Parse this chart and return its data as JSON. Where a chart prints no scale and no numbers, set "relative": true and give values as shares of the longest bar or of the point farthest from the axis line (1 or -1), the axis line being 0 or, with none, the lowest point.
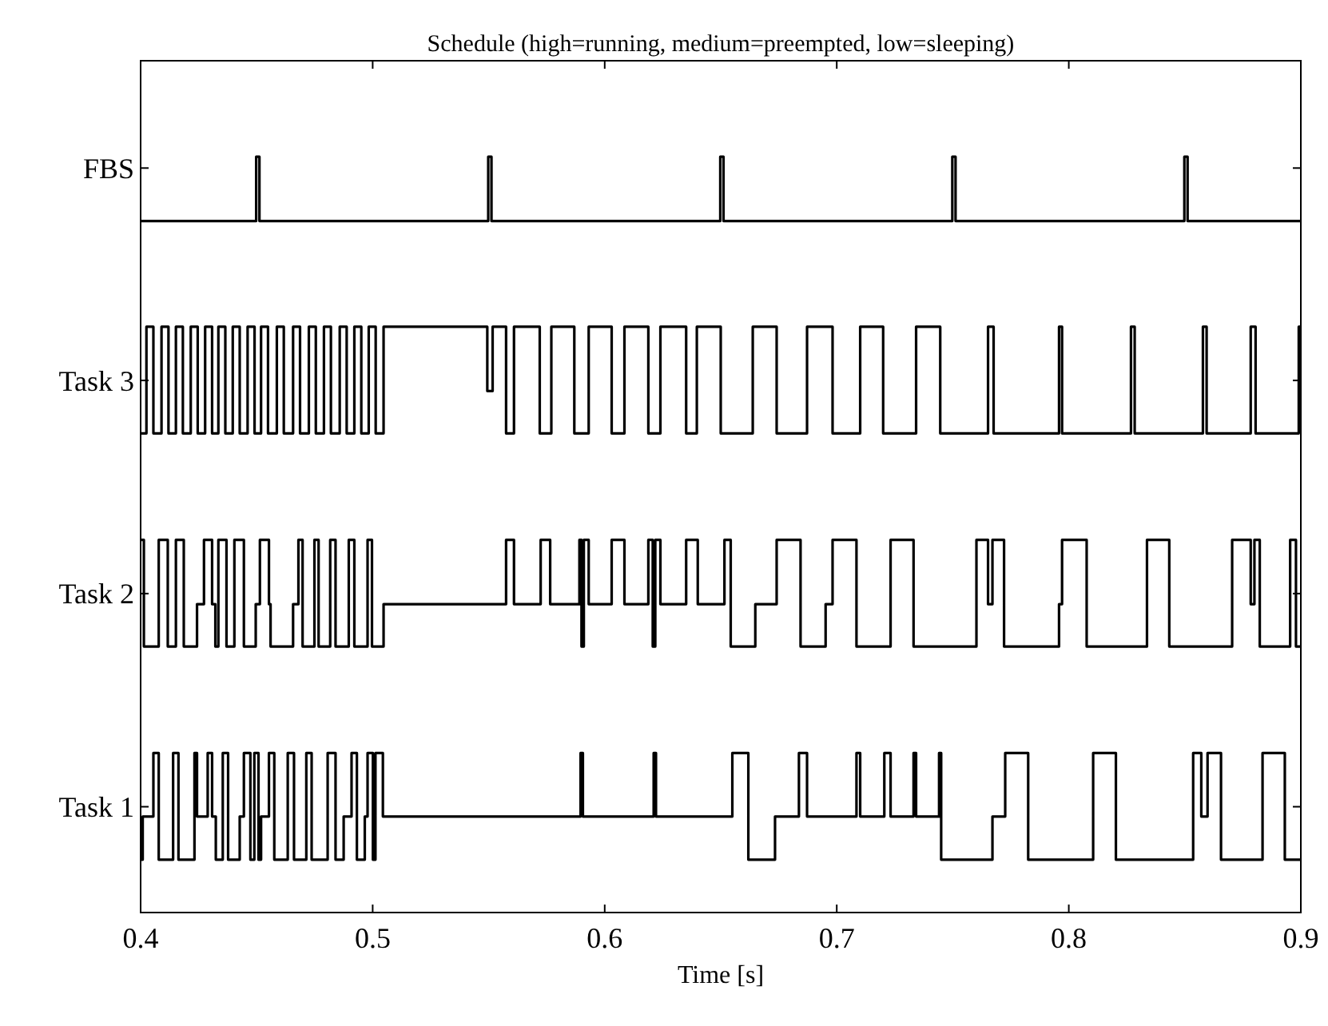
{
  "chart_data": {
    "type": "step",
    "title": "Schedule (high=running, medium=preempted, low=sleeping)",
    "xlabel": "Time [s]",
    "xlim": [
      0.4,
      0.9
    ],
    "xticks": [
      0.4,
      0.5,
      0.6,
      0.7,
      0.8,
      0.9
    ],
    "relative": true,
    "legend": "left",
    "series": [
      {
        "name": "FBS",
        "color": "#000000",
        "x": [
          0.4,
          0.4498,
          0.4512,
          0.5498,
          0.5512,
          0.6498,
          0.6512,
          0.7498,
          0.7512,
          0.8498,
          0.8512,
          0.9
        ],
        "values": [
          0.915,
          1,
          0.915,
          1,
          0.915,
          1,
          0.915,
          1,
          0.915,
          1,
          0.915,
          0.915
        ]
      },
      {
        "name": "Task 3",
        "color": "#000000",
        "x": [
          0.4,
          0.4025,
          0.4055,
          0.409,
          0.412,
          0.4152,
          0.4182,
          0.4216,
          0.4246,
          0.4278,
          0.4308,
          0.4335,
          0.4365,
          0.4397,
          0.4427,
          0.4461,
          0.4491,
          0.4519,
          0.4549,
          0.4587,
          0.4617,
          0.4657,
          0.4687,
          0.4725,
          0.4755,
          0.479,
          0.482,
          0.4858,
          0.4888,
          0.4921,
          0.4951,
          0.4983,
          0.5013,
          0.5047,
          0.5494,
          0.5517,
          0.5575,
          0.5609,
          0.572,
          0.577,
          0.5869,
          0.5931,
          0.603,
          0.6085,
          0.6188,
          0.624,
          0.6351,
          0.6397,
          0.65,
          0.6638,
          0.6741,
          0.6872,
          0.6982,
          0.7101,
          0.72,
          0.7342,
          0.7446,
          0.7652,
          0.7676,
          0.7958,
          0.7971,
          0.8268,
          0.8284,
          0.8578,
          0.8594,
          0.8784,
          0.8805,
          0.8991,
          0.9
        ],
        "values": [
          0.634,
          0.775,
          0.634,
          0.775,
          0.634,
          0.775,
          0.634,
          0.775,
          0.634,
          0.775,
          0.634,
          0.775,
          0.634,
          0.775,
          0.634,
          0.775,
          0.634,
          0.775,
          0.634,
          0.775,
          0.634,
          0.775,
          0.634,
          0.775,
          0.634,
          0.775,
          0.634,
          0.775,
          0.634,
          0.775,
          0.634,
          0.775,
          0.634,
          0.775,
          0.69,
          0.775,
          0.634,
          0.775,
          0.634,
          0.775,
          0.634,
          0.775,
          0.634,
          0.775,
          0.634,
          0.775,
          0.634,
          0.775,
          0.634,
          0.775,
          0.634,
          0.775,
          0.634,
          0.775,
          0.634,
          0.775,
          0.634,
          0.775,
          0.634,
          0.775,
          0.634,
          0.775,
          0.634,
          0.775,
          0.634,
          0.775,
          0.634,
          0.775,
          0.775
        ]
      },
      {
        "name": "Task 2",
        "color": "#000000",
        "x": [
          0.4,
          0.4014,
          0.4078,
          0.4117,
          0.4152,
          0.4186,
          0.4243,
          0.4273,
          0.4308,
          0.4322,
          0.4335,
          0.437,
          0.4404,
          0.4445,
          0.4496,
          0.4514,
          0.4553,
          0.456,
          0.4657,
          0.468,
          0.4698,
          0.4749,
          0.4767,
          0.4817,
          0.484,
          0.4897,
          0.4921,
          0.4978,
          0.4997,
          0.5047,
          0.5575,
          0.5609,
          0.5724,
          0.5765,
          0.5891,
          0.59,
          0.591,
          0.5931,
          0.603,
          0.6085,
          0.6188,
          0.6207,
          0.6218,
          0.624,
          0.6351,
          0.6401,
          0.6516,
          0.6543,
          0.6649,
          0.6741,
          0.6844,
          0.6952,
          0.6982,
          0.7085,
          0.7232,
          0.7331,
          0.7602,
          0.7652,
          0.7671,
          0.7721,
          0.7958,
          0.7971,
          0.8077,
          0.8337,
          0.8433,
          0.8704,
          0.8784,
          0.88,
          0.8823,
          0.8954,
          0.8979,
          0.9
        ],
        "values": [
          0.493,
          0.352,
          0.493,
          0.352,
          0.493,
          0.352,
          0.408,
          0.493,
          0.408,
          0.352,
          0.493,
          0.352,
          0.493,
          0.352,
          0.408,
          0.493,
          0.408,
          0.352,
          0.408,
          0.493,
          0.352,
          0.493,
          0.352,
          0.493,
          0.352,
          0.493,
          0.352,
          0.493,
          0.352,
          0.408,
          0.493,
          0.408,
          0.493,
          0.408,
          0.493,
          0.352,
          0.493,
          0.408,
          0.493,
          0.408,
          0.493,
          0.352,
          0.493,
          0.408,
          0.493,
          0.408,
          0.493,
          0.352,
          0.408,
          0.493,
          0.352,
          0.408,
          0.493,
          0.352,
          0.493,
          0.352,
          0.493,
          0.408,
          0.493,
          0.352,
          0.408,
          0.493,
          0.352,
          0.493,
          0.352,
          0.493,
          0.408,
          0.493,
          0.352,
          0.493,
          0.352,
          0.352
        ]
      },
      {
        "name": "Task 1",
        "color": "#000000",
        "x": [
          0.4,
          0.4009,
          0.4055,
          0.4078,
          0.414,
          0.4163,
          0.4232,
          0.4243,
          0.4289,
          0.4308,
          0.4324,
          0.4354,
          0.4377,
          0.4427,
          0.4445,
          0.4473,
          0.449,
          0.4508,
          0.4519,
          0.4553,
          0.4576,
          0.4634,
          0.4661,
          0.4714,
          0.4737,
          0.4806,
          0.484,
          0.4875,
          0.4909,
          0.4932,
          0.4966,
          0.4978,
          0.5001,
          0.5012,
          0.5044,
          0.5896,
          0.5906,
          0.6211,
          0.6221,
          0.655,
          0.6619,
          0.6734,
          0.6837,
          0.6872,
          0.7085,
          0.7101,
          0.7205,
          0.7232,
          0.7331,
          0.7342,
          0.7441,
          0.745,
          0.7671,
          0.7726,
          0.7825,
          0.8105,
          0.8203,
          0.8536,
          0.8571,
          0.8598,
          0.8656,
          0.8835,
          0.8931,
          0.9
        ],
        "values": [
          0.07,
          0.127,
          0.211,
          0.07,
          0.211,
          0.07,
          0.211,
          0.127,
          0.211,
          0.127,
          0.07,
          0.211,
          0.07,
          0.127,
          0.211,
          0.07,
          0.211,
          0.07,
          0.127,
          0.211,
          0.07,
          0.211,
          0.07,
          0.211,
          0.07,
          0.211,
          0.07,
          0.127,
          0.211,
          0.07,
          0.127,
          0.211,
          0.07,
          0.211,
          0.127,
          0.211,
          0.127,
          0.211,
          0.127,
          0.211,
          0.07,
          0.127,
          0.211,
          0.127,
          0.211,
          0.127,
          0.211,
          0.127,
          0.211,
          0.127,
          0.211,
          0.07,
          0.127,
          0.211,
          0.07,
          0.211,
          0.07,
          0.211,
          0.127,
          0.211,
          0.07,
          0.211,
          0.07,
          0.07
        ]
      }
    ]
  }
}
